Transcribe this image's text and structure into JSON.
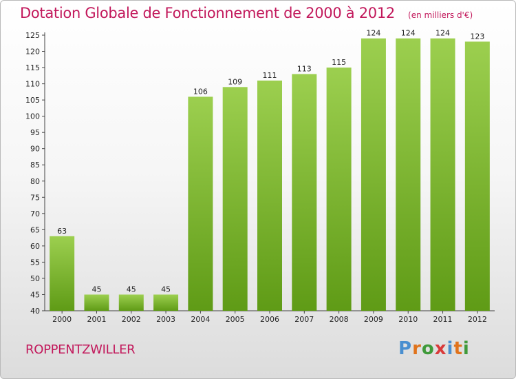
{
  "header": {
    "title": "Dotation Globale de Fonctionnement de 2000 à 2012",
    "subtitle": "(en milliers d'€)"
  },
  "footer": {
    "commune": "ROPPENTZWILLER",
    "logo": "Proxiti"
  },
  "colors": {
    "title": "#c2185b",
    "bar_light": "#9ccf4f",
    "bar_dark": "#5f9b16",
    "logo_letters": [
      "#4a8fd0",
      "#e0731c",
      "#3f9a3a",
      "#d93a3a",
      "#4a8fd0",
      "#e0731c",
      "#3f9a3a"
    ]
  },
  "chart_data": {
    "type": "bar",
    "title": "Dotation Globale de Fonctionnement de 2000 à 2012",
    "subtitle": "(en milliers d'€)",
    "categories": [
      "2000",
      "2001",
      "2002",
      "2003",
      "2004",
      "2005",
      "2006",
      "2007",
      "2008",
      "2009",
      "2010",
      "2011",
      "2012"
    ],
    "values": [
      63,
      45,
      45,
      45,
      106,
      109,
      111,
      113,
      115,
      124,
      124,
      124,
      123
    ],
    "ylim": [
      40,
      125
    ],
    "yticks": [
      40,
      45,
      50,
      55,
      60,
      65,
      70,
      75,
      80,
      85,
      90,
      95,
      100,
      105,
      110,
      115,
      120,
      125
    ],
    "grid": false,
    "legend": "none"
  }
}
